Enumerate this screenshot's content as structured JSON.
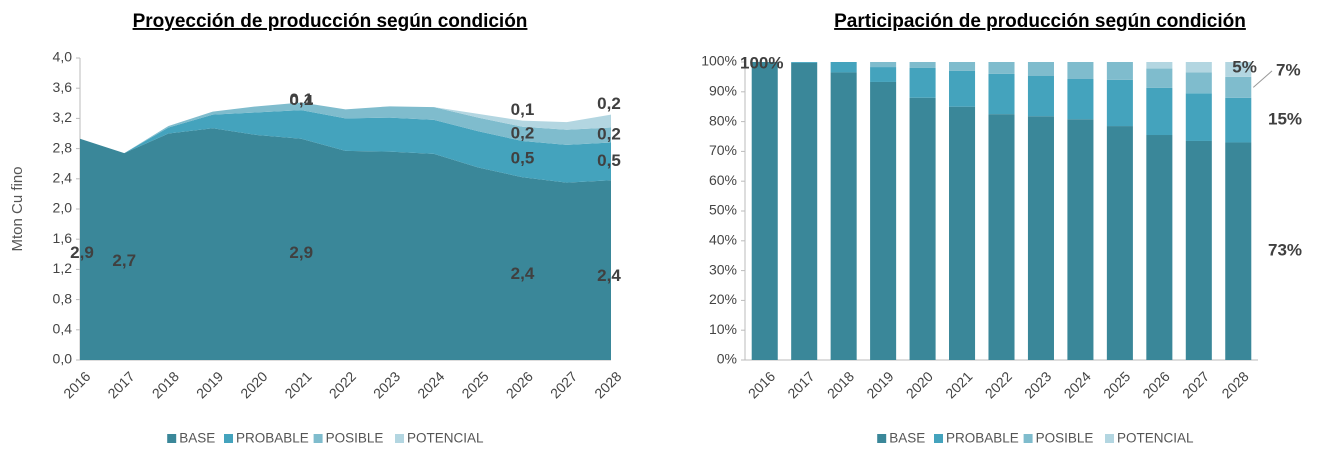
{
  "chart_data": [
    {
      "type": "area",
      "title": "Proyección de producción según condición",
      "y_label": "Mton Cu fino",
      "categories": [
        "2016",
        "2017",
        "2018",
        "2019",
        "2020",
        "2021",
        "2022",
        "2023",
        "2024",
        "2025",
        "2026",
        "2027",
        "2028"
      ],
      "ylim": [
        0,
        4
      ],
      "yticks": [
        {
          "value": 0,
          "label": "0,0"
        },
        {
          "value": 0.4,
          "label": "0,4"
        },
        {
          "value": 0.8,
          "label": "0,8"
        },
        {
          "value": 1.2,
          "label": "1,2"
        },
        {
          "value": 1.6,
          "label": "1,6"
        },
        {
          "value": 2,
          "label": "2,0"
        },
        {
          "value": 2.4,
          "label": "2,4"
        },
        {
          "value": 2.8,
          "label": "2,8"
        },
        {
          "value": 3.2,
          "label": "3,2"
        },
        {
          "value": 3.6,
          "label": "3,6"
        },
        {
          "value": 4,
          "label": "4,0"
        }
      ],
      "series": [
        {
          "name": "BASE",
          "color": "#3a8799",
          "values": [
            2.93,
            2.74,
            3.0,
            3.07,
            2.98,
            2.93,
            2.77,
            2.76,
            2.73,
            2.55,
            2.42,
            2.35,
            2.38
          ],
          "value_labels": [
            "2,9",
            "2,7",
            null,
            null,
            null,
            "2,9",
            null,
            null,
            null,
            null,
            "2,4",
            null,
            "2,4"
          ]
        },
        {
          "name": "PROBABLE",
          "color": "#44a3bd",
          "values": [
            0,
            0,
            0.08,
            0.18,
            0.3,
            0.38,
            0.43,
            0.45,
            0.45,
            0.48,
            0.48,
            0.5,
            0.5
          ],
          "value_labels": [
            null,
            null,
            null,
            null,
            null,
            "0,4",
            null,
            null,
            null,
            null,
            "0,5",
            null,
            "0,5"
          ]
        },
        {
          "name": "POSIBLE",
          "color": "#7fbccd",
          "values": [
            0,
            0,
            0.02,
            0.04,
            0.08,
            0.1,
            0.12,
            0.15,
            0.17,
            0.18,
            0.19,
            0.2,
            0.2
          ],
          "value_labels": [
            null,
            null,
            null,
            null,
            null,
            "0,1",
            null,
            null,
            null,
            null,
            "0,2",
            null,
            "0,2"
          ]
        },
        {
          "name": "POTENCIAL",
          "color": "#b3d6e1",
          "values": [
            0,
            0,
            0,
            0,
            0,
            0,
            0,
            0,
            0,
            0.05,
            0.08,
            0.1,
            0.17
          ],
          "value_labels": [
            null,
            null,
            null,
            null,
            null,
            null,
            null,
            null,
            null,
            null,
            "0,1",
            null,
            "0,2"
          ]
        }
      ]
    },
    {
      "type": "bar",
      "title": "Participación de producción según condición",
      "categories": [
        "2016",
        "2017",
        "2018",
        "2019",
        "2020",
        "2021",
        "2022",
        "2023",
        "2024",
        "2025",
        "2026",
        "2027",
        "2028"
      ],
      "ylim": [
        0,
        100
      ],
      "yticks": [
        {
          "value": 0,
          "label": "0%"
        },
        {
          "value": 10,
          "label": "10%"
        },
        {
          "value": 20,
          "label": "20%"
        },
        {
          "value": 30,
          "label": "30%"
        },
        {
          "value": 40,
          "label": "40%"
        },
        {
          "value": 50,
          "label": "50%"
        },
        {
          "value": 60,
          "label": "60%"
        },
        {
          "value": 70,
          "label": "70%"
        },
        {
          "value": 80,
          "label": "80%"
        },
        {
          "value": 90,
          "label": "90%"
        },
        {
          "value": 100,
          "label": "100%"
        }
      ],
      "series": [
        {
          "name": "BASE",
          "color": "#3a8799",
          "values": [
            100,
            99.7,
            96.5,
            93.3,
            88,
            85,
            82.5,
            81.8,
            80.8,
            78.5,
            75.5,
            73.5,
            73
          ],
          "value_labels": [
            "100%",
            null,
            null,
            null,
            null,
            null,
            null,
            null,
            null,
            null,
            null,
            null,
            "73%"
          ]
        },
        {
          "name": "PROBABLE",
          "color": "#44a3bd",
          "values": [
            0,
            0.3,
            3.5,
            5,
            10,
            12,
            13.5,
            13.5,
            13.5,
            15.5,
            15.8,
            16,
            15
          ],
          "value_labels": [
            null,
            null,
            null,
            null,
            null,
            null,
            null,
            null,
            null,
            null,
            null,
            null,
            "15%"
          ]
        },
        {
          "name": "POSIBLE",
          "color": "#7fbccd",
          "values": [
            0,
            0,
            0,
            1.7,
            2,
            3,
            4,
            4.7,
            5.7,
            6,
            6.5,
            7,
            7
          ],
          "value_labels": [
            null,
            null,
            null,
            null,
            null,
            null,
            null,
            null,
            null,
            null,
            null,
            null,
            "7%"
          ]
        },
        {
          "name": "POTENCIAL",
          "color": "#b3d6e1",
          "values": [
            0,
            0,
            0,
            0,
            0,
            0,
            0,
            0,
            0,
            0,
            2.2,
            3.5,
            5
          ],
          "value_labels": [
            null,
            null,
            null,
            null,
            null,
            null,
            null,
            null,
            null,
            null,
            null,
            null,
            "5%"
          ]
        }
      ]
    }
  ]
}
